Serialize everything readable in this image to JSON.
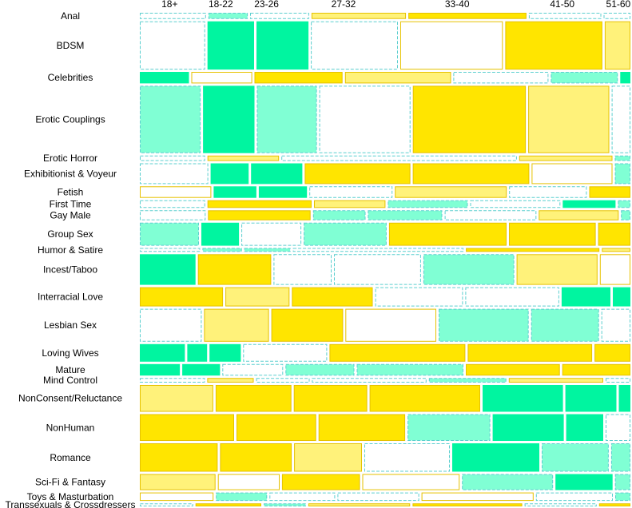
{
  "chart_data": {
    "type": "mosaic",
    "columns": [
      "18+",
      "18-22",
      "23-26",
      "27-32",
      "33-40",
      "41-50",
      "51-60"
    ],
    "column_widths": [
      84,
      60,
      69,
      148,
      172,
      124,
      34
    ],
    "rows": [
      {
        "label": "Anal",
        "weight": 8,
        "cells": [
          {
            "w": 84,
            "s": "dn"
          },
          {
            "w": 50,
            "s": "pd"
          },
          {
            "w": 75,
            "s": "dn"
          },
          {
            "w": 120,
            "s": "ls"
          },
          {
            "w": 150,
            "s": "ys"
          },
          {
            "w": 92,
            "s": "dn"
          },
          {
            "w": 34,
            "s": "dn"
          }
        ]
      },
      {
        "label": "BDSM",
        "weight": 63,
        "cells": [
          {
            "w": 84,
            "s": "wd"
          },
          {
            "w": 60,
            "s": "gs"
          },
          {
            "w": 67,
            "s": "gs"
          },
          {
            "w": 112,
            "s": "wd"
          },
          {
            "w": 132,
            "s": "ws"
          },
          {
            "w": 125,
            "s": "ys"
          },
          {
            "w": 33,
            "s": "ls"
          }
        ]
      },
      {
        "label": "Celebrities",
        "weight": 15,
        "cells": [
          {
            "w": 63,
            "s": "gs"
          },
          {
            "w": 78,
            "s": "ws"
          },
          {
            "w": 113,
            "s": "ys"
          },
          {
            "w": 136,
            "s": "ls"
          },
          {
            "w": 122,
            "s": "wd"
          },
          {
            "w": 86,
            "s": "pd"
          },
          {
            "w": 13,
            "s": "gs"
          }
        ]
      },
      {
        "label": "Erotic Couplings",
        "weight": 88,
        "cells": [
          {
            "w": 78,
            "s": "pd"
          },
          {
            "w": 66,
            "s": "gs"
          },
          {
            "w": 77,
            "s": "pd"
          },
          {
            "w": 117,
            "s": "wd"
          },
          {
            "w": 145,
            "s": "ys"
          },
          {
            "w": 104,
            "s": "ls"
          },
          {
            "w": 24,
            "s": "wd"
          }
        ]
      },
      {
        "label": "Erotic Horror",
        "weight": 7,
        "cells": [
          {
            "w": 84,
            "s": "dn"
          },
          {
            "w": 92,
            "s": "ls"
          },
          {
            "w": 303,
            "s": "dn"
          },
          {
            "w": 120,
            "s": "ls"
          },
          {
            "w": 20,
            "s": "pd"
          }
        ]
      },
      {
        "label": "Exhibitionist & Voyeur",
        "weight": 27,
        "cells": [
          {
            "w": 88,
            "s": "wd"
          },
          {
            "w": 49,
            "s": "gs"
          },
          {
            "w": 66,
            "s": "gs"
          },
          {
            "w": 136,
            "s": "ys"
          },
          {
            "w": 150,
            "s": "ys"
          },
          {
            "w": 104,
            "s": "ws"
          },
          {
            "w": 20,
            "s": "pd"
          }
        ]
      },
      {
        "label": "Fetish",
        "weight": 15,
        "cells": [
          {
            "w": 92,
            "s": "ws"
          },
          {
            "w": 55,
            "s": "gs"
          },
          {
            "w": 62,
            "s": "gs"
          },
          {
            "w": 107,
            "s": "wd"
          },
          {
            "w": 144,
            "s": "ls"
          },
          {
            "w": 100,
            "s": "wd"
          },
          {
            "w": 53,
            "s": "ys"
          }
        ]
      },
      {
        "label": "First Time",
        "weight": 10,
        "cells": [
          {
            "w": 84,
            "s": "wd"
          },
          {
            "w": 134,
            "s": "ys"
          },
          {
            "w": 92,
            "s": "ls"
          },
          {
            "w": 103,
            "s": "pd"
          },
          {
            "w": 116,
            "s": "wd"
          },
          {
            "w": 68,
            "s": "gs"
          },
          {
            "w": 16,
            "s": "pd"
          }
        ]
      },
      {
        "label": "Gay Male",
        "weight": 13,
        "cells": [
          {
            "w": 84,
            "s": "wd"
          },
          {
            "w": 131,
            "s": "ys"
          },
          {
            "w": 67,
            "s": "pd"
          },
          {
            "w": 95,
            "s": "pd"
          },
          {
            "w": 117,
            "s": "wd"
          },
          {
            "w": 102,
            "s": "ls"
          },
          {
            "w": 12,
            "s": "pd"
          }
        ]
      },
      {
        "label": "Group Sex",
        "weight": 30,
        "cells": [
          {
            "w": 77,
            "s": "pd"
          },
          {
            "w": 49,
            "s": "gs"
          },
          {
            "w": 78,
            "s": "wd"
          },
          {
            "w": 108,
            "s": "pd"
          },
          {
            "w": 153,
            "s": "ys"
          },
          {
            "w": 113,
            "s": "ys"
          },
          {
            "w": 42,
            "s": "ys"
          }
        ]
      },
      {
        "label": "Humor & Satire",
        "weight": 5,
        "cells": [
          {
            "w": 78,
            "s": "dn"
          },
          {
            "w": 51,
            "s": "pd"
          },
          {
            "w": 60,
            "s": "pd"
          },
          {
            "w": 221,
            "s": "dn"
          },
          {
            "w": 173,
            "s": "ys"
          },
          {
            "w": 37,
            "s": "ls"
          }
        ]
      },
      {
        "label": "Incest/Taboo",
        "weight": 40,
        "cells": [
          {
            "w": 73,
            "s": "gs"
          },
          {
            "w": 96,
            "s": "ys"
          },
          {
            "w": 76,
            "s": "wd"
          },
          {
            "w": 114,
            "s": "wd"
          },
          {
            "w": 119,
            "s": "pd"
          },
          {
            "w": 106,
            "s": "ls"
          },
          {
            "w": 40,
            "s": "ws"
          }
        ]
      },
      {
        "label": "Interracial Love",
        "weight": 25,
        "cells": [
          {
            "w": 109,
            "s": "ys"
          },
          {
            "w": 84,
            "s": "ls"
          },
          {
            "w": 106,
            "s": "ys"
          },
          {
            "w": 115,
            "s": "wd"
          },
          {
            "w": 123,
            "s": "wd"
          },
          {
            "w": 64,
            "s": "gs"
          },
          {
            "w": 23,
            "s": "gs"
          }
        ]
      },
      {
        "label": "Lesbian Sex",
        "weight": 43,
        "cells": [
          {
            "w": 81,
            "s": "wd"
          },
          {
            "w": 85,
            "s": "ls"
          },
          {
            "w": 94,
            "s": "ys"
          },
          {
            "w": 119,
            "s": "ws"
          },
          {
            "w": 118,
            "s": "pd"
          },
          {
            "w": 89,
            "s": "pd"
          },
          {
            "w": 38,
            "s": "wd"
          }
        ]
      },
      {
        "label": "Loving Wives",
        "weight": 23,
        "cells": [
          {
            "w": 59,
            "s": "gs"
          },
          {
            "w": 26,
            "s": "gs"
          },
          {
            "w": 41,
            "s": "gs"
          },
          {
            "w": 110,
            "s": "wd"
          },
          {
            "w": 178,
            "s": "ys"
          },
          {
            "w": 163,
            "s": "ys"
          },
          {
            "w": 47,
            "s": "ys"
          }
        ]
      },
      {
        "label": "Mature",
        "weight": 15,
        "cells": [
          {
            "w": 54,
            "s": "gs"
          },
          {
            "w": 51,
            "s": "gs"
          },
          {
            "w": 82,
            "s": "wd"
          },
          {
            "w": 93,
            "s": "pd"
          },
          {
            "w": 144,
            "s": "pd"
          },
          {
            "w": 127,
            "s": "ys"
          },
          {
            "w": 92,
            "s": "ys"
          }
        ]
      },
      {
        "label": "Mind Control",
        "weight": 6,
        "cells": [
          {
            "w": 84,
            "s": "dn"
          },
          {
            "w": 60,
            "s": "ls"
          },
          {
            "w": 69,
            "s": "dn"
          },
          {
            "w": 148,
            "s": "dn"
          },
          {
            "w": 100,
            "s": "pd"
          },
          {
            "w": 122,
            "s": "ls"
          },
          {
            "w": 32,
            "s": "dn"
          }
        ]
      },
      {
        "label": "NonConsent/Reluctance",
        "weight": 35,
        "cells": [
          {
            "w": 95,
            "s": "ls"
          },
          {
            "w": 98,
            "s": "ys"
          },
          {
            "w": 95,
            "s": "ys"
          },
          {
            "w": 143,
            "s": "ys"
          },
          {
            "w": 104,
            "s": "gs"
          },
          {
            "w": 66,
            "s": "gs"
          },
          {
            "w": 15,
            "s": "gs"
          }
        ]
      },
      {
        "label": "NonHuman",
        "weight": 35,
        "cells": [
          {
            "w": 122,
            "s": "ys"
          },
          {
            "w": 103,
            "s": "ys"
          },
          {
            "w": 112,
            "s": "ys"
          },
          {
            "w": 107,
            "s": "pd"
          },
          {
            "w": 92,
            "s": "gs"
          },
          {
            "w": 48,
            "s": "gs"
          },
          {
            "w": 32,
            "s": "wd"
          }
        ]
      },
      {
        "label": "Romance",
        "weight": 37,
        "cells": [
          {
            "w": 101,
            "s": "ys"
          },
          {
            "w": 93,
            "s": "ys"
          },
          {
            "w": 88,
            "s": "ls"
          },
          {
            "w": 111,
            "s": "wd"
          },
          {
            "w": 113,
            "s": "gs"
          },
          {
            "w": 87,
            "s": "pd"
          },
          {
            "w": 25,
            "s": "pd"
          }
        ]
      },
      {
        "label": "Sci-Fi & Fantasy",
        "weight": 21,
        "cells": [
          {
            "w": 98,
            "s": "ls"
          },
          {
            "w": 80,
            "s": "ws"
          },
          {
            "w": 101,
            "s": "ys"
          },
          {
            "w": 126,
            "s": "ws"
          },
          {
            "w": 118,
            "s": "pd"
          },
          {
            "w": 74,
            "s": "gs"
          },
          {
            "w": 20,
            "s": "pd"
          }
        ]
      },
      {
        "label": "Toys & Masturbation",
        "weight": 11,
        "cells": [
          {
            "w": 92,
            "s": "ws"
          },
          {
            "w": 64,
            "s": "pd"
          },
          {
            "w": 82,
            "s": "wd"
          },
          {
            "w": 102,
            "s": "wd"
          },
          {
            "w": 140,
            "s": "ws"
          },
          {
            "w": 96,
            "s": "wd"
          },
          {
            "w": 19,
            "s": "pd"
          }
        ]
      },
      {
        "label": "Transsexuals & Crossdressers",
        "weight": 4,
        "cells": [
          {
            "w": 68,
            "s": "dn"
          },
          {
            "w": 84,
            "s": "ys"
          },
          {
            "w": 54,
            "s": "pd"
          },
          {
            "w": 130,
            "s": "ls"
          },
          {
            "w": 140,
            "s": "ys"
          },
          {
            "w": 92,
            "s": "dn"
          },
          {
            "w": 40,
            "s": "ys"
          }
        ]
      }
    ],
    "legend": "none",
    "grid": false
  },
  "colors": {
    "yellow": "#ffe500",
    "light_yellow": "#fff27a",
    "green": "#00f5a0",
    "pale_green": "#80ffd4",
    "white": "#ffffff",
    "yellow_border": "#e6c200",
    "teal_dash": "#5ccfcf"
  }
}
